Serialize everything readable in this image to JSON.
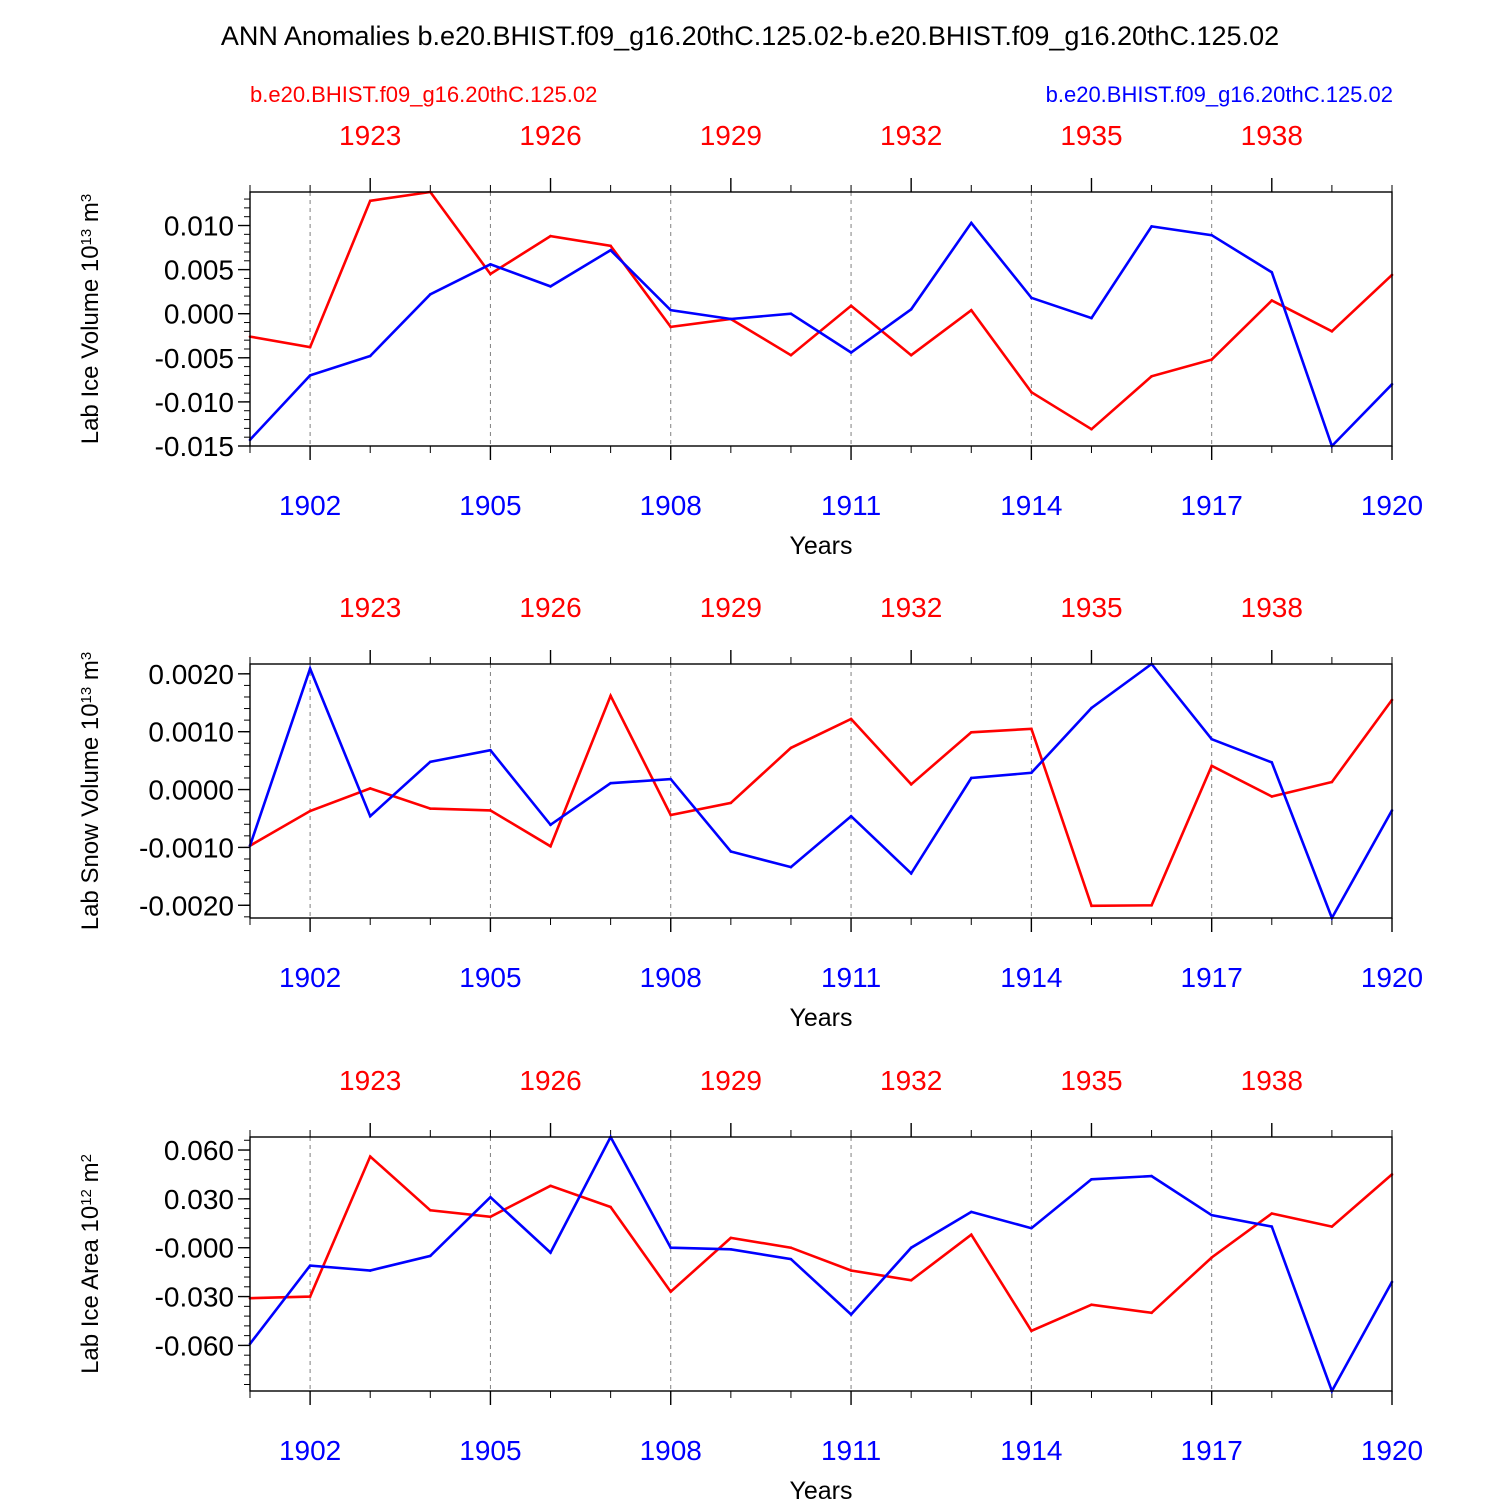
{
  "title": "ANN Anomalies b.e20.BHIST.f09_g16.20thC.125.02-b.e20.BHIST.f09_g16.20thC.125.02",
  "legend": {
    "left": {
      "label": "b.e20.BHIST.f09_g16.20thC.125.02",
      "color": "#ff0000"
    },
    "right": {
      "label": "b.e20.BHIST.f09_g16.20thC.125.02",
      "color": "#0000ff"
    }
  },
  "colors": {
    "red": "#ff0000",
    "blue": "#0000ff",
    "grid": "#808080",
    "frame": "#000000"
  },
  "chart_data": [
    {
      "type": "line",
      "ylabel": "Lab Ice Volume",
      "yunit_base": "10",
      "yunit_exp": "13",
      "yunit_sym": "m",
      "yunit_pow": "3",
      "xlabel": "Years",
      "ylim": [
        -0.015,
        0.0138
      ],
      "yticks": [
        0.01,
        0.005,
        0.0,
        -0.005,
        -0.01,
        -0.015
      ],
      "ytick_labels": [
        "0.010",
        "0.005",
        "0.000",
        "-0.005",
        "-0.010",
        "-0.015"
      ],
      "yminor_step": 0.001,
      "bottom_xlim": [
        1901,
        1920
      ],
      "bottom_ticks": [
        1902,
        1905,
        1908,
        1911,
        1914,
        1917,
        1920
      ],
      "bottom_tick_labels": [
        "1902",
        "1905",
        "1908",
        "1911",
        "1914",
        "1917",
        "1920"
      ],
      "top_xlim": [
        1921,
        1940
      ],
      "top_ticks": [
        1923,
        1926,
        1929,
        1932,
        1935,
        1938
      ],
      "top_tick_labels": [
        "1923",
        "1926",
        "1929",
        "1932",
        "1935",
        "1938"
      ],
      "series": [
        {
          "name": "b.e20.BHIST.f09_g16.20thC.125.02",
          "axis": "top",
          "color": "red",
          "x": [
            1921,
            1922,
            1923,
            1924,
            1925,
            1926,
            1927,
            1928,
            1929,
            1930,
            1931,
            1932,
            1933,
            1934,
            1935,
            1936,
            1937,
            1938,
            1939,
            1940
          ],
          "values": [
            -0.0026,
            -0.0038,
            0.0128,
            0.0138,
            0.0045,
            0.0088,
            0.0077,
            -0.0015,
            -0.0006,
            -0.0047,
            0.0009,
            -0.0047,
            0.0004,
            -0.0089,
            -0.0131,
            -0.0071,
            -0.0052,
            0.0015,
            -0.002,
            0.0044
          ]
        },
        {
          "name": "b.e20.BHIST.f09_g16.20thC.125.02",
          "axis": "bottom",
          "color": "blue",
          "x": [
            1901,
            1902,
            1903,
            1904,
            1905,
            1906,
            1907,
            1908,
            1909,
            1910,
            1911,
            1912,
            1913,
            1914,
            1915,
            1916,
            1917,
            1918,
            1919,
            1920
          ],
          "values": [
            -0.0143,
            -0.007,
            -0.0048,
            0.0022,
            0.0056,
            0.0031,
            0.0072,
            0.0004,
            -0.0006,
            0.0,
            -0.0044,
            0.0005,
            0.0103,
            0.0018,
            -0.0005,
            0.0099,
            0.0089,
            0.0047,
            -0.015,
            -0.008
          ]
        }
      ]
    },
    {
      "type": "line",
      "ylabel": "Lab Snow Volume",
      "yunit_base": "10",
      "yunit_exp": "13",
      "yunit_sym": "m",
      "yunit_pow": "3",
      "xlabel": "Years",
      "ylim": [
        -0.00222,
        0.00217
      ],
      "yticks": [
        0.002,
        0.001,
        0.0,
        -0.001,
        -0.002
      ],
      "ytick_labels": [
        "0.0020",
        "0.0010",
        "0.0000",
        "-0.0010",
        "-0.0020"
      ],
      "yminor_step": 0.0002,
      "bottom_xlim": [
        1901,
        1920
      ],
      "bottom_ticks": [
        1902,
        1905,
        1908,
        1911,
        1914,
        1917,
        1920
      ],
      "bottom_tick_labels": [
        "1902",
        "1905",
        "1908",
        "1911",
        "1914",
        "1917",
        "1920"
      ],
      "top_xlim": [
        1921,
        1940
      ],
      "top_ticks": [
        1923,
        1926,
        1929,
        1932,
        1935,
        1938
      ],
      "top_tick_labels": [
        "1923",
        "1926",
        "1929",
        "1932",
        "1935",
        "1938"
      ],
      "series": [
        {
          "name": "b.e20.BHIST.f09_g16.20thC.125.02",
          "axis": "top",
          "color": "red",
          "x": [
            1921,
            1922,
            1923,
            1924,
            1925,
            1926,
            1927,
            1928,
            1929,
            1930,
            1931,
            1932,
            1933,
            1934,
            1935,
            1936,
            1937,
            1938,
            1939,
            1940
          ],
          "values": [
            -0.00097,
            -0.00037,
            2e-05,
            -0.00033,
            -0.00036,
            -0.00098,
            0.00162,
            -0.00044,
            -0.00023,
            0.00072,
            0.00122,
            9e-05,
            0.00099,
            0.00105,
            -0.00201,
            -0.002,
            0.00041,
            -0.00012,
            0.00013,
            0.00155
          ]
        },
        {
          "name": "b.e20.BHIST.f09_g16.20thC.125.02",
          "axis": "bottom",
          "color": "blue",
          "x": [
            1901,
            1902,
            1903,
            1904,
            1905,
            1906,
            1907,
            1908,
            1909,
            1910,
            1911,
            1912,
            1913,
            1914,
            1915,
            1916,
            1917,
            1918,
            1919,
            1920
          ],
          "values": [
            -0.00097,
            0.00209,
            -0.00046,
            0.00048,
            0.00068,
            -0.00061,
            0.00011,
            0.00018,
            -0.00107,
            -0.00134,
            -0.00046,
            -0.00145,
            0.0002,
            0.00029,
            0.00141,
            0.00217,
            0.00087,
            0.00047,
            -0.00222,
            -0.00036
          ]
        }
      ]
    },
    {
      "type": "line",
      "ylabel": "Lab Ice Area",
      "yunit_base": "10",
      "yunit_exp": "12",
      "yunit_sym": "m",
      "yunit_pow": "2",
      "xlabel": "Years",
      "ylim": [
        -0.088,
        0.068
      ],
      "yticks": [
        0.06,
        0.03,
        0.0,
        -0.03,
        -0.06
      ],
      "ytick_labels": [
        "0.060",
        "0.030",
        "-0.000",
        "-0.030",
        "-0.060"
      ],
      "yminor_step": 0.006,
      "bottom_xlim": [
        1901,
        1920
      ],
      "bottom_ticks": [
        1902,
        1905,
        1908,
        1911,
        1914,
        1917,
        1920
      ],
      "bottom_tick_labels": [
        "1902",
        "1905",
        "1908",
        "1911",
        "1914",
        "1917",
        "1920"
      ],
      "top_xlim": [
        1921,
        1940
      ],
      "top_ticks": [
        1923,
        1926,
        1929,
        1932,
        1935,
        1938
      ],
      "top_tick_labels": [
        "1923",
        "1926",
        "1929",
        "1932",
        "1935",
        "1938"
      ],
      "series": [
        {
          "name": "b.e20.BHIST.f09_g16.20thC.125.02",
          "axis": "top",
          "color": "red",
          "x": [
            1921,
            1922,
            1923,
            1924,
            1925,
            1926,
            1927,
            1928,
            1929,
            1930,
            1931,
            1932,
            1933,
            1934,
            1935,
            1936,
            1937,
            1938,
            1939,
            1940
          ],
          "values": [
            -0.031,
            -0.03,
            0.056,
            0.023,
            0.019,
            0.038,
            0.025,
            -0.027,
            0.006,
            0.0,
            -0.014,
            -0.02,
            0.008,
            -0.051,
            -0.035,
            -0.04,
            -0.006,
            0.021,
            0.013,
            0.045
          ]
        },
        {
          "name": "b.e20.BHIST.f09_g16.20thC.125.02",
          "axis": "bottom",
          "color": "blue",
          "x": [
            1901,
            1902,
            1903,
            1904,
            1905,
            1906,
            1907,
            1908,
            1909,
            1910,
            1911,
            1912,
            1913,
            1914,
            1915,
            1916,
            1917,
            1918,
            1919,
            1920
          ],
          "values": [
            -0.059,
            -0.011,
            -0.014,
            -0.005,
            0.031,
            -0.003,
            0.068,
            0.0,
            -0.001,
            -0.007,
            -0.041,
            0.0,
            0.022,
            0.012,
            0.042,
            0.044,
            0.02,
            0.013,
            -0.088,
            -0.021
          ]
        }
      ]
    }
  ]
}
